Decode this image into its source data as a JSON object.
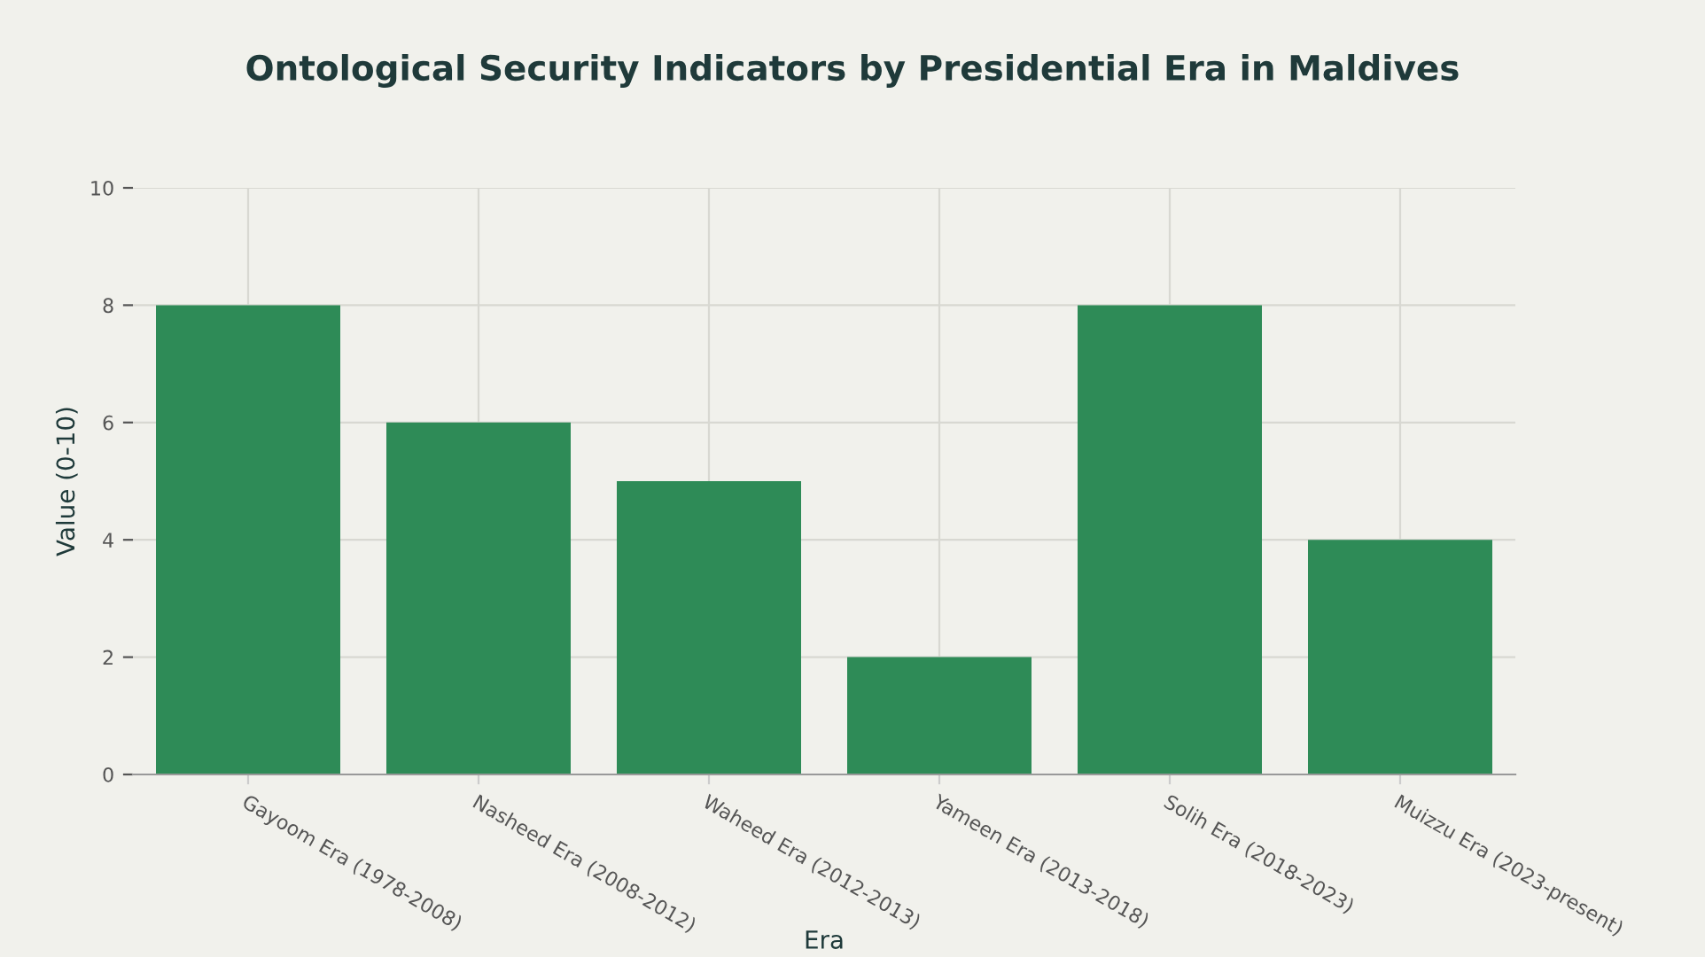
{
  "chart_data": {
    "type": "bar",
    "title": "Ontological Security Indicators by Presidential Era in Maldives",
    "xlabel": "Era",
    "ylabel": "Value (0-10)",
    "categories": [
      "Gayoom Era (1978-2008)",
      "Nasheed Era (2008-2012)",
      "Waheed Era (2012-2013)",
      "Yameen Era (2013-2018)",
      "Solih Era (2018-2023)",
      "Muizzu Era (2023-present)"
    ],
    "values": [
      8,
      6,
      5,
      2,
      8,
      4
    ],
    "color": "#2e8b57",
    "ylim": [
      0,
      10
    ],
    "yticks": [
      0,
      2,
      4,
      6,
      8,
      10
    ],
    "grid": true
  }
}
